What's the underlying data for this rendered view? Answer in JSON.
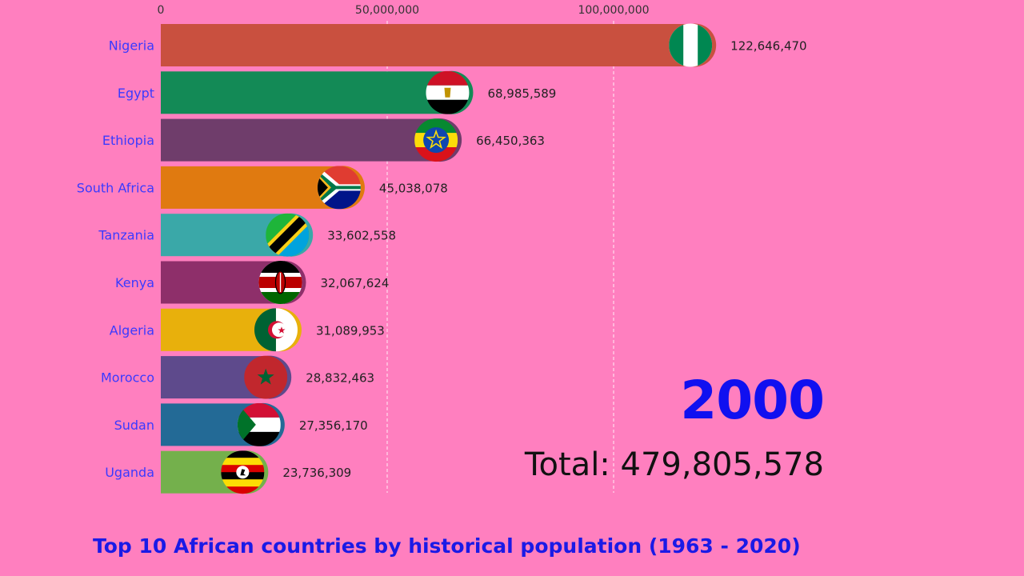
{
  "chart_data": {
    "type": "bar",
    "orientation": "horizontal",
    "title": "Top 10 African countries by historical population (1963 - 2020)",
    "year": "2000",
    "total_label": "Total:",
    "total_value": "479,805,578",
    "x_ticks": [
      0,
      50000000,
      100000000
    ],
    "x_tick_labels": [
      "0",
      "50,000,000",
      "100,000,000"
    ],
    "xlim": [
      0,
      150000000
    ],
    "grid": true,
    "categories": [
      "Nigeria",
      "Egypt",
      "Ethiopia",
      "South Africa",
      "Tanzania",
      "Kenya",
      "Algeria",
      "Morocco",
      "Sudan",
      "Uganda"
    ],
    "values": [
      122646470,
      68985589,
      66450363,
      45038078,
      33602558,
      32067624,
      31089953,
      28832463,
      27356170,
      23736309
    ],
    "value_labels": [
      "122,646,470",
      "68,985,589",
      "66,450,363",
      "45,038,078",
      "33,602,558",
      "32,067,624",
      "31,089,953",
      "28,832,463",
      "27,356,170",
      "23,736,309"
    ],
    "colors": [
      "#c9503f",
      "#138a56",
      "#6f3d6b",
      "#e07a10",
      "#3aa8a8",
      "#8e2f6a",
      "#e8b00c",
      "#5e4a8c",
      "#236a96",
      "#74b04c"
    ],
    "flags": [
      "nigeria-flag-icon",
      "egypt-flag-icon",
      "ethiopia-flag-icon",
      "south-africa-flag-icon",
      "tanzania-flag-icon",
      "kenya-flag-icon",
      "algeria-flag-icon",
      "morocco-flag-icon",
      "sudan-flag-icon",
      "uganda-flag-icon"
    ]
  }
}
